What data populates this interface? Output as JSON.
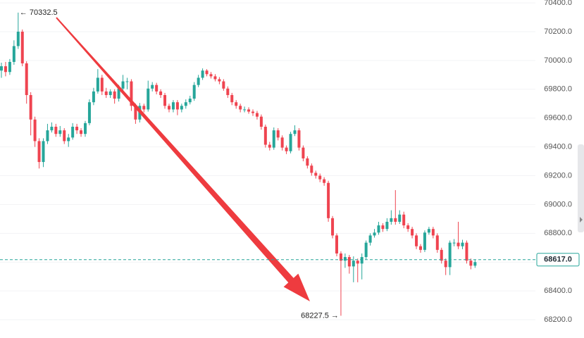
{
  "chart_data": {
    "type": "candlestick",
    "up_color": "#26a69a",
    "down_color": "#ef4450",
    "ylim": [
      68073,
      70420
    ],
    "yticks": [
      {
        "value": 68200,
        "label": "68200.0"
      },
      {
        "value": 68400,
        "label": "68400.0"
      },
      {
        "value": 68600,
        "label": "68600.0"
      },
      {
        "value": 68800,
        "label": "68800.0"
      },
      {
        "value": 69000,
        "label": "69000.0"
      },
      {
        "value": 69200,
        "label": "69200.0"
      },
      {
        "value": 69400,
        "label": "69400.0"
      },
      {
        "value": 69600,
        "label": "69600.0"
      },
      {
        "value": 69800,
        "label": "69800.0"
      },
      {
        "value": 70000,
        "label": "70000.0"
      },
      {
        "value": 70200,
        "label": "70200.0"
      },
      {
        "value": 70400,
        "label": "70400.0"
      }
    ],
    "grid": true,
    "open": [
      69930,
      69960,
      69920,
      69990,
      70100,
      70200,
      69980,
      69760,
      69590,
      69440,
      69295,
      69440,
      69515,
      69540,
      69490,
      69515,
      69440,
      69465,
      69540,
      69515,
      69490,
      69565,
      69710,
      69785,
      69880,
      69785,
      69760,
      69785,
      69735,
      69805,
      69855,
      69855,
      69685,
      69590,
      69685,
      69660,
      69805,
      69830,
      69785,
      69760,
      69685,
      69660,
      69710,
      69660,
      69685,
      69710,
      69735,
      69830,
      69880,
      69930,
      69905,
      69890,
      69870,
      69855,
      69805,
      69760,
      69710,
      69685,
      69660,
      69660,
      69645,
      69635,
      69610,
      69540,
      69415,
      69395,
      69515,
      69465,
      69395,
      69370,
      69490,
      69515,
      69395,
      69320,
      69270,
      69220,
      69200,
      69175,
      69150,
      68905,
      68785,
      68660,
      68610,
      68635,
      68570,
      68610,
      68590,
      68635,
      68735,
      68785,
      68805,
      68855,
      68830,
      68880,
      68905,
      68880,
      68930,
      68855,
      68830,
      68785,
      68710,
      68685,
      68805,
      68830,
      68785,
      68685,
      68610,
      68565,
      68735,
      68735,
      68710,
      68735,
      68610,
      68575
    ],
    "high": [
      69985,
      69990,
      70010,
      70140,
      70332.5,
      70215,
      69995,
      69780,
      69610,
      69460,
      69460,
      69560,
      69570,
      69560,
      69545,
      69530,
      69490,
      69565,
      69560,
      69530,
      69580,
      69730,
      69810,
      69940,
      69900,
      69810,
      69800,
      69800,
      69830,
      69900,
      69880,
      69870,
      69700,
      69705,
      69700,
      69860,
      69850,
      69845,
      69800,
      69775,
      69700,
      69725,
      69725,
      69700,
      69730,
      69755,
      69850,
      69900,
      69945,
      69940,
      69920,
      69905,
      69885,
      69870,
      69820,
      69775,
      69725,
      69700,
      69680,
      69675,
      69660,
      69650,
      69625,
      69555,
      69435,
      69535,
      69530,
      69480,
      69410,
      69505,
      69550,
      69530,
      69410,
      69335,
      69285,
      69235,
      69215,
      69190,
      69165,
      68920,
      68800,
      68675,
      68660,
      68650,
      68640,
      68625,
      68660,
      68750,
      68800,
      68830,
      68880,
      68870,
      68905,
      68960,
      69100,
      68960,
      68950,
      68870,
      68845,
      68800,
      68725,
      68820,
      68845,
      68845,
      68800,
      68700,
      68625,
      68750,
      68760,
      68880,
      68755,
      68750,
      68625,
      68615
    ],
    "low": [
      69880,
      69890,
      69900,
      69970,
      70080,
      69960,
      69700,
      69480,
      69400,
      69250,
      69260,
      69420,
      69500,
      69470,
      69470,
      69420,
      69400,
      69450,
      69490,
      69470,
      69470,
      69550,
      69690,
      69770,
      69760,
      69740,
      69740,
      69700,
      69715,
      69790,
      69800,
      69650,
      69560,
      69570,
      69640,
      69645,
      69785,
      69765,
      69740,
      69665,
      69640,
      69640,
      69620,
      69640,
      69665,
      69695,
      69720,
      69815,
      69865,
      69890,
      69875,
      69855,
      69835,
      69790,
      69740,
      69690,
      69665,
      69640,
      69640,
      69630,
      69615,
      69590,
      69520,
      69395,
      69375,
      69380,
      69445,
      69375,
      69350,
      69355,
      69475,
      69375,
      69300,
      69250,
      69200,
      69180,
      69155,
      69130,
      68880,
      68765,
      68640,
      68227.5,
      68560,
      68520,
      68460,
      68460,
      68480,
      68620,
      68715,
      68770,
      68790,
      68810,
      68815,
      68860,
      68860,
      68865,
      68835,
      68810,
      68765,
      68690,
      68665,
      68670,
      68790,
      68765,
      68665,
      68590,
      68510,
      68510,
      68710,
      68690,
      68690,
      68590,
      68550,
      68560
    ],
    "close": [
      69960,
      69920,
      69990,
      70100,
      70200,
      69980,
      69760,
      69590,
      69440,
      69295,
      69440,
      69515,
      69540,
      69490,
      69515,
      69440,
      69465,
      69540,
      69515,
      69490,
      69565,
      69710,
      69785,
      69880,
      69785,
      69760,
      69785,
      69735,
      69805,
      69855,
      69855,
      69685,
      69590,
      69685,
      69660,
      69805,
      69830,
      69785,
      69760,
      69685,
      69660,
      69710,
      69660,
      69685,
      69710,
      69735,
      69830,
      69880,
      69930,
      69905,
      69890,
      69870,
      69855,
      69805,
      69760,
      69710,
      69685,
      69660,
      69660,
      69645,
      69635,
      69610,
      69540,
      69415,
      69395,
      69515,
      69465,
      69395,
      69370,
      69490,
      69515,
      69395,
      69320,
      69270,
      69220,
      69200,
      69175,
      69150,
      68905,
      68785,
      68660,
      68610,
      68635,
      68570,
      68610,
      68590,
      68635,
      68735,
      68785,
      68805,
      68855,
      68830,
      68880,
      68905,
      68880,
      68930,
      68855,
      68830,
      68785,
      68710,
      68685,
      68805,
      68830,
      68785,
      68685,
      68610,
      68565,
      68735,
      68735,
      68710,
      68735,
      68610,
      68575,
      68600
    ],
    "annotations": [
      {
        "value": 70332.5,
        "label": "← 70332.5",
        "at": "high"
      },
      {
        "value": 68227.5,
        "label": "68227.5 →",
        "at": "low"
      }
    ],
    "current_price": {
      "value": 68617.0,
      "label": "68617.0",
      "color": "#26a69a"
    }
  }
}
